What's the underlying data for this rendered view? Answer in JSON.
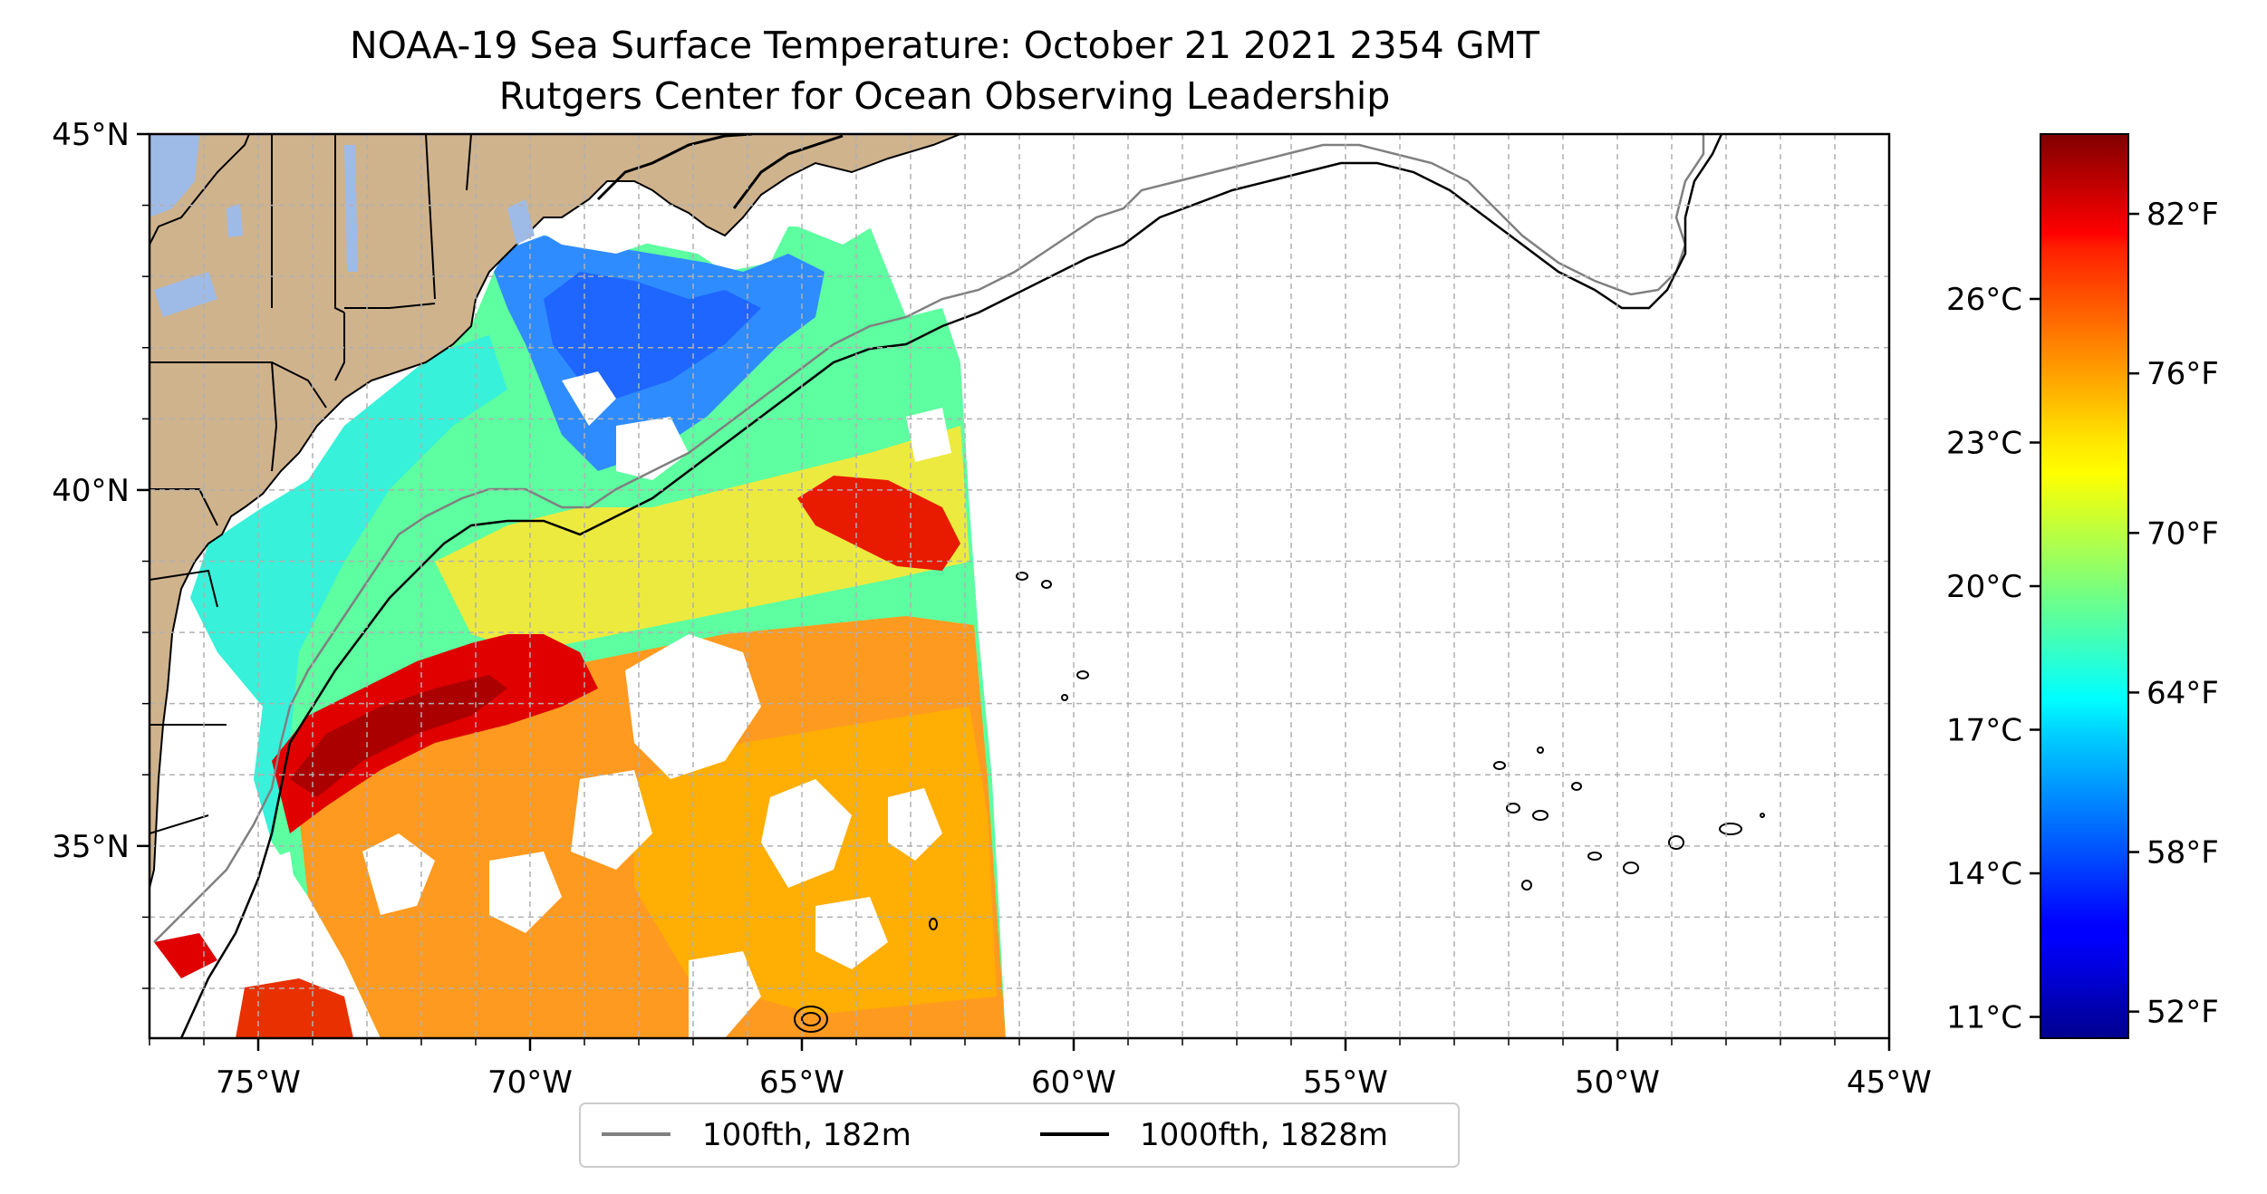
{
  "title_line1": "NOAA-19 Sea Surface Temperature: October 21 2021 2354 GMT",
  "title_line2": "Rutgers Center for Ocean Observing Leadership",
  "map": {
    "lon_range": [
      -77,
      -45
    ],
    "lat_range": [
      32.3,
      45
    ],
    "x_ticks": [
      -75,
      -70,
      -65,
      -60,
      -55,
      -50,
      -45
    ],
    "x_tick_labels": [
      "75°W",
      "70°W",
      "65°W",
      "60°W",
      "55°W",
      "50°W",
      "45°W"
    ],
    "y_ticks": [
      35,
      40,
      45
    ],
    "y_tick_labels": [
      "35°N",
      "40°N",
      "45°N"
    ],
    "grid": true,
    "land_color": "#cfb38d"
  },
  "legend": {
    "placement": "bottom-center",
    "items": [
      {
        "label": "100fth, 182m",
        "color": "#808080"
      },
      {
        "label": "1000fth, 1828m",
        "color": "#000000"
      }
    ]
  },
  "colorbar": {
    "colormap": "jet",
    "range_f": [
      51,
      85
    ],
    "fahrenheit_ticks": [
      52,
      58,
      64,
      70,
      76,
      82
    ],
    "fahrenheit_labels": [
      "52°F",
      "58°F",
      "64°F",
      "70°F",
      "76°F",
      "82°F"
    ],
    "celsius_ticks": [
      11,
      14,
      17,
      20,
      23,
      26
    ],
    "celsius_labels": [
      "11°C",
      "14°C",
      "17°C",
      "20°C",
      "23°C",
      "26°C"
    ]
  }
}
